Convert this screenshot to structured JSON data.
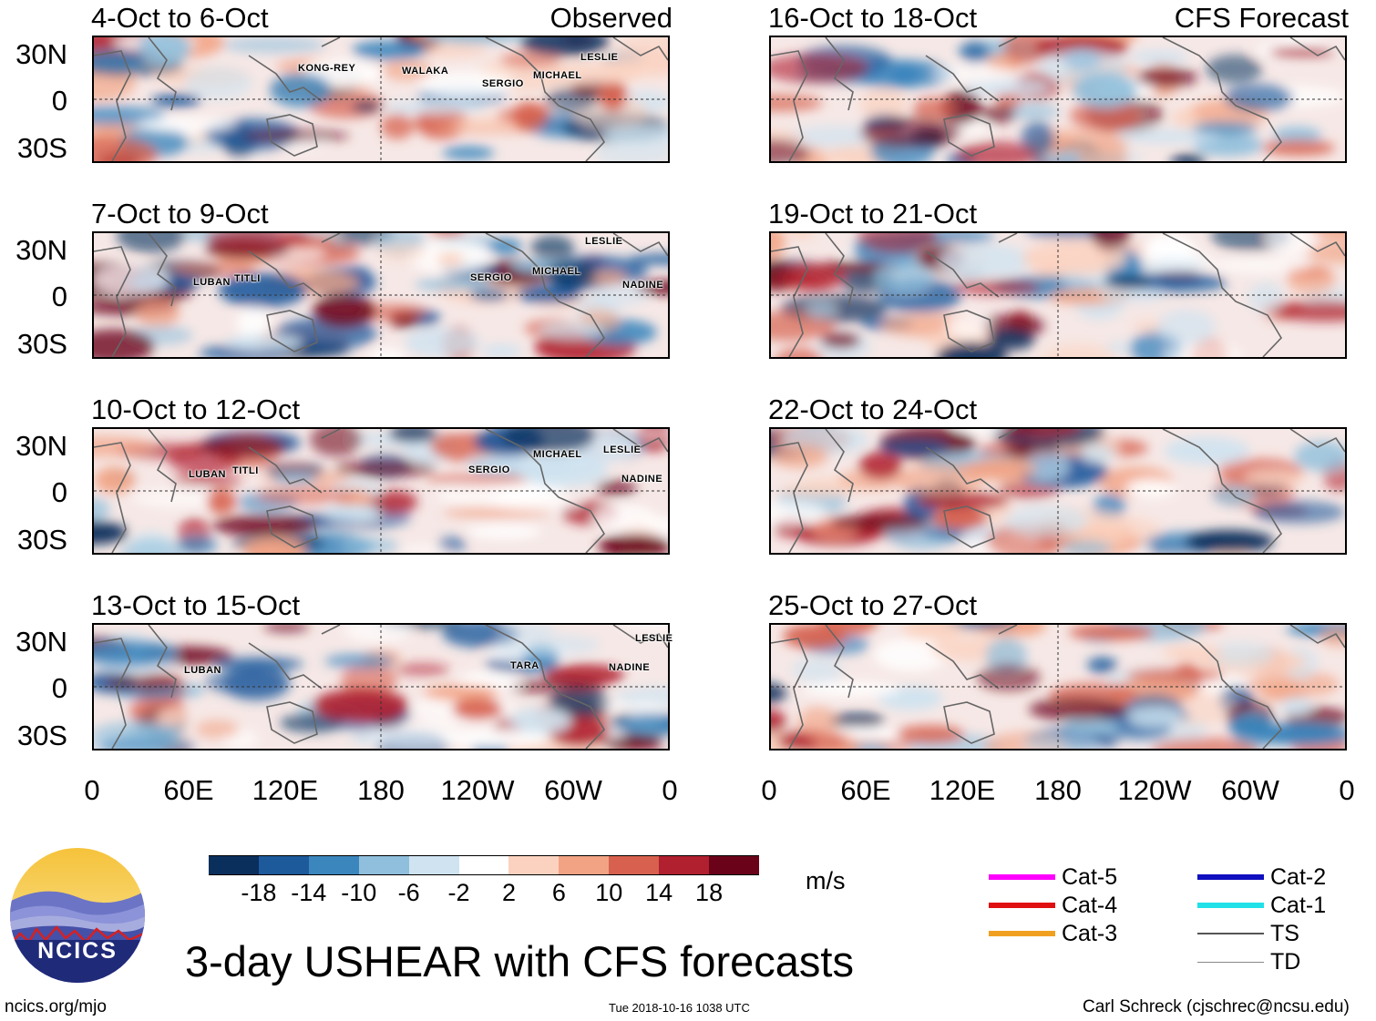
{
  "header": {
    "left_label": "Observed",
    "right_label": "CFS Forecast"
  },
  "panels": {
    "left": [
      {
        "title": "4-Oct to 6-Oct",
        "storms": [
          "KONG-REY",
          "WALAKA",
          "SERGIO",
          "MICHAEL",
          "LESLIE"
        ]
      },
      {
        "title": "7-Oct to 9-Oct",
        "storms": [
          "LUBAN",
          "TITLI",
          "SERGIO",
          "MICHAEL",
          "NADINE",
          "LESLIE"
        ]
      },
      {
        "title": "10-Oct to 12-Oct",
        "storms": [
          "LUBAN",
          "TITLI",
          "SERGIO",
          "MICHAEL",
          "LESLIE",
          "NADINE"
        ]
      },
      {
        "title": "13-Oct to 15-Oct",
        "storms": [
          "LUBAN",
          "TARA",
          "NADINE",
          "LESLIE"
        ]
      }
    ],
    "right": [
      {
        "title": "16-Oct to 18-Oct"
      },
      {
        "title": "19-Oct to 21-Oct"
      },
      {
        "title": "22-Oct to 24-Oct"
      },
      {
        "title": "25-Oct to 27-Oct"
      }
    ]
  },
  "axes": {
    "lat_labels": [
      "30N",
      "0",
      "30S"
    ],
    "lon_labels": [
      "0",
      "60E",
      "120E",
      "180",
      "120W",
      "60W",
      "0"
    ]
  },
  "colorbar": {
    "ticks": [
      "-18",
      "-14",
      "-10",
      "-6",
      "-2",
      "2",
      "6",
      "10",
      "14",
      "18"
    ],
    "unit": "m/s",
    "colors": [
      "#0a2f5c",
      "#1c5a9c",
      "#3b86bd",
      "#8fbfdc",
      "#cfe3f0",
      "#ffffff",
      "#fbd2bf",
      "#f2a384",
      "#d7614e",
      "#b0202f",
      "#6a0219"
    ]
  },
  "legend": {
    "items": [
      {
        "label": "Cat-5",
        "color": "#ff00ff"
      },
      {
        "label": "Cat-4",
        "color": "#e01010"
      },
      {
        "label": "Cat-3",
        "color": "#f0a020"
      },
      {
        "label": "Cat-2",
        "color": "#1010c0"
      },
      {
        "label": "Cat-1",
        "color": "#20e0e8"
      },
      {
        "label": "TS",
        "color": "#555555"
      },
      {
        "label": "TD",
        "color": "#888888"
      }
    ]
  },
  "logo": {
    "text": "NCICS"
  },
  "footer": {
    "title": "3-day USHEAR with CFS forecasts",
    "url": "ncics.org/mjo",
    "timestamp": "Tue 2018-10-16 1038 UTC",
    "credit": "Carl Schreck (cjschrec@ncsu.edu)"
  }
}
